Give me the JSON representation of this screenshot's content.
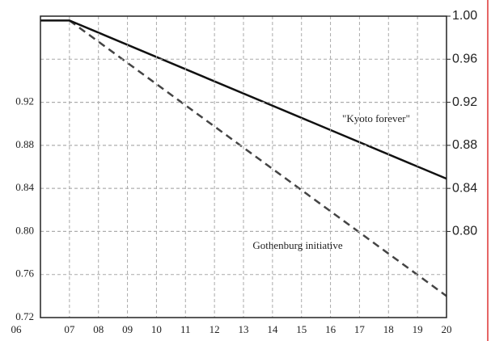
{
  "chart_data": {
    "type": "line",
    "x": [
      2006,
      2007,
      2020
    ],
    "series": [
      {
        "name": "\"Kyoto forever\"",
        "color": "#111111",
        "style": "solid",
        "values": [
          0.996,
          0.996,
          0.849
        ]
      },
      {
        "name": "Gothenburg initiative",
        "color": "#444444",
        "style": "dashed",
        "values": [
          null,
          0.996,
          0.74
        ]
      }
    ],
    "xlim": [
      2006,
      2020
    ],
    "xticks": [
      {
        "value": 2006,
        "label": "06"
      },
      {
        "value": 2007,
        "label": "07"
      },
      {
        "value": 2008,
        "label": "08"
      },
      {
        "value": 2009,
        "label": "09"
      },
      {
        "value": 2010,
        "label": "10"
      },
      {
        "value": 2011,
        "label": "11"
      },
      {
        "value": 2012,
        "label": "12"
      },
      {
        "value": 2013,
        "label": "13"
      },
      {
        "value": 2014,
        "label": "14"
      },
      {
        "value": 2015,
        "label": "15"
      },
      {
        "value": 2016,
        "label": "16"
      },
      {
        "value": 2017,
        "label": "17"
      },
      {
        "value": 2018,
        "label": "18"
      },
      {
        "value": 2019,
        "label": "19"
      },
      {
        "value": 2020,
        "label": "20"
      }
    ],
    "ylim": [
      0.72,
      1.0
    ],
    "yticks": [
      {
        "value": 0.72,
        "label": "0.72"
      },
      {
        "value": 0.76,
        "label": "0.76"
      },
      {
        "value": 0.8,
        "label": "0.80"
      },
      {
        "value": 0.84,
        "label": "0.84"
      },
      {
        "value": 0.88,
        "label": "0.88"
      },
      {
        "value": 0.92,
        "label": "0.92"
      }
    ],
    "y2lim": [
      0.72,
      1.0
    ],
    "y2ticks": [
      {
        "value": 0.8,
        "label": "0.80"
      },
      {
        "value": 0.84,
        "label": "0.84"
      },
      {
        "value": 0.88,
        "label": "0.88"
      },
      {
        "value": 0.92,
        "label": "0.92"
      },
      {
        "value": 0.96,
        "label": "0.96"
      },
      {
        "value": 1.0,
        "label": "1.00"
      }
    ],
    "grid": true
  }
}
